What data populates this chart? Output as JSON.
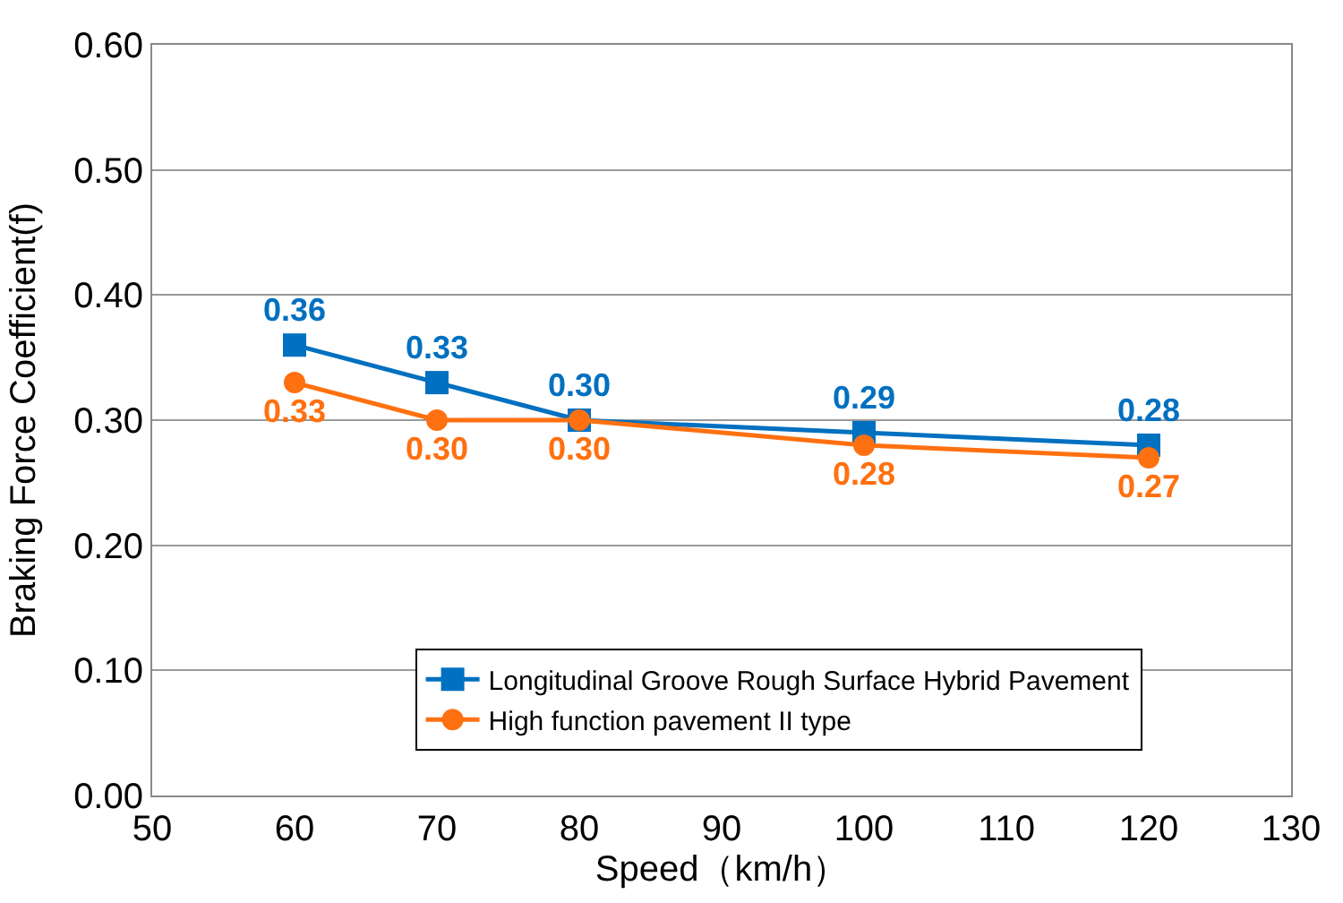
{
  "chart_data": {
    "type": "line",
    "xlabel": "Speed（km/h）",
    "ylabel": "Braking Force Coefficient(f)",
    "x": [
      60,
      70,
      80,
      100,
      120
    ],
    "series": [
      {
        "name": "Longitudinal Groove Rough Surface Hybrid Pavement",
        "color": "#0070c0",
        "marker": "square",
        "values": [
          0.36,
          0.33,
          0.3,
          0.29,
          0.28
        ],
        "value_labels": [
          "0.36",
          "0.33",
          "0.30",
          "0.29",
          "0.28"
        ]
      },
      {
        "name": "High function pavement II type",
        "color": "#ff7010",
        "marker": "circle",
        "values": [
          0.33,
          0.3,
          0.3,
          0.28,
          0.27
        ],
        "value_labels": [
          "0.33",
          "0.30",
          "0.30",
          "0.28",
          "0.27"
        ]
      }
    ],
    "xlim": [
      50,
      130
    ],
    "xticks": [
      50,
      60,
      70,
      80,
      90,
      100,
      110,
      120,
      130
    ],
    "ylim": [
      0,
      0.6
    ],
    "yticks": [
      {
        "value": 0,
        "label": "0.00"
      },
      {
        "value": 0.1,
        "label": "0.10"
      },
      {
        "value": 0.2,
        "label": "0.20"
      },
      {
        "value": 0.3,
        "label": "0.30"
      },
      {
        "value": 0.4,
        "label": "0.40"
      },
      {
        "value": 0.5,
        "label": "0.50"
      },
      {
        "value": 0.6,
        "label": "0.60"
      }
    ],
    "grid": "y",
    "legend": "bottom",
    "line_style": "solid"
  }
}
